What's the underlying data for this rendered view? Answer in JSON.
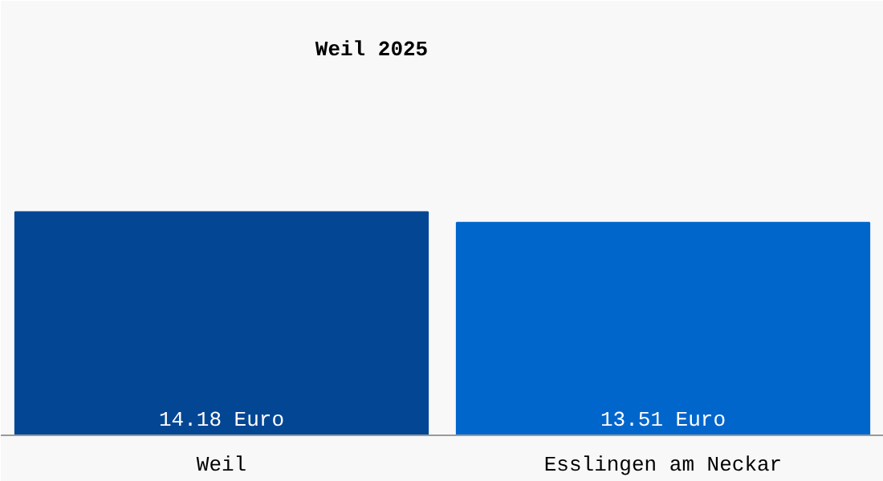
{
  "chart_data": {
    "type": "bar",
    "title": "Weil 2025",
    "categories": [
      "Weil",
      "Esslingen am Neckar"
    ],
    "values": [
      14.18,
      13.51
    ],
    "colors": [
      "#034694",
      "#0066cc"
    ],
    "value_labels": [
      "14.18 Euro",
      "13.51 Euro"
    ],
    "ylim": [
      0,
      27.6
    ],
    "grid": false
  }
}
